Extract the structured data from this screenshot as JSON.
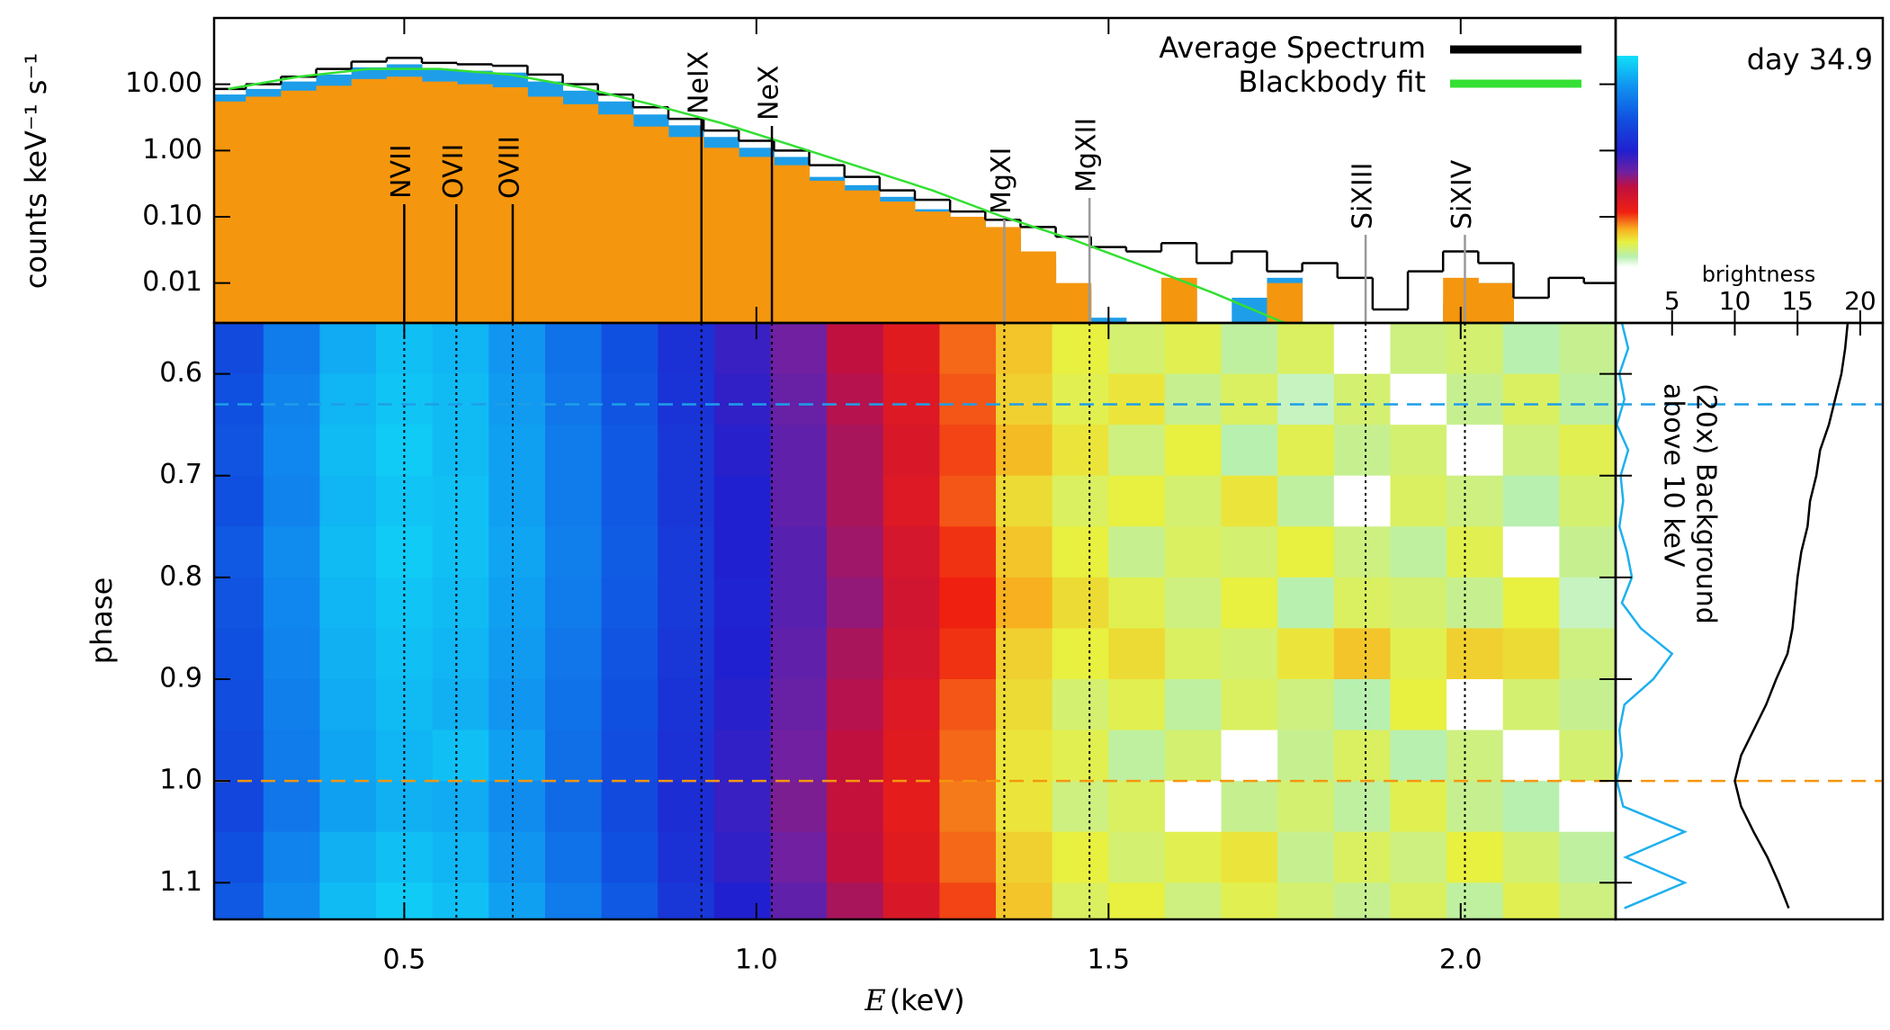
{
  "chart_data": [
    {
      "type": "histogram",
      "ylabel": "counts keV⁻¹ s⁻¹",
      "xlim": [
        0.23,
        2.22
      ],
      "ylim": [
        0.0025,
        100
      ],
      "log_y": true,
      "yticks": [
        {
          "value": 10,
          "label": "10.00"
        },
        {
          "value": 1,
          "label": "1.00"
        },
        {
          "value": 0.1,
          "label": "0.10"
        },
        {
          "value": 0.01,
          "label": "0.01"
        }
      ],
      "bins": [
        0.225,
        0.275,
        0.325,
        0.375,
        0.425,
        0.475,
        0.525,
        0.575,
        0.625,
        0.675,
        0.725,
        0.775,
        0.825,
        0.875,
        0.925,
        0.975,
        1.025,
        1.075,
        1.125,
        1.175,
        1.225,
        1.275,
        1.325,
        1.375,
        1.425,
        1.475,
        1.525,
        1.575,
        1.625,
        1.675,
        1.725,
        1.775,
        1.825,
        1.875,
        1.925,
        1.975,
        2.025,
        2.075,
        2.125,
        2.175,
        2.225
      ],
      "series": [
        {
          "color": "#1e9ee8",
          "style": "fill",
          "values": [
            7,
            8.5,
            11,
            14,
            18,
            20,
            17,
            16,
            15,
            11,
            8,
            5.5,
            3.5,
            2.4,
            1.6,
            1.1,
            0.8,
            0.4,
            0.3,
            0.2,
            0.13,
            0.09,
            0.05,
            0.02,
            0.008,
            0.003,
            null,
            0.008,
            null,
            0.006,
            0.012,
            null,
            null,
            null,
            null,
            0.005,
            0.01,
            null,
            null,
            null
          ]
        },
        {
          "color": "#f5960f",
          "style": "fill",
          "values": [
            5.5,
            6.5,
            8,
            9.5,
            12,
            13,
            11,
            10,
            9,
            6.5,
            5,
            3.5,
            2.3,
            1.6,
            1.1,
            0.8,
            0.6,
            0.35,
            0.25,
            0.17,
            0.12,
            0.1,
            0.07,
            0.03,
            0.01,
            null,
            null,
            0.012,
            null,
            null,
            0.01,
            null,
            null,
            null,
            null,
            0.012,
            0.01,
            null,
            null,
            null
          ]
        },
        {
          "name": "Average Spectrum",
          "color": "#000000",
          "style": "step",
          "values": [
            8.5,
            10,
            13,
            17,
            22,
            25,
            21,
            20,
            19,
            14,
            10,
            7,
            4.5,
            3,
            2,
            1.4,
            1,
            0.6,
            0.4,
            0.25,
            0.18,
            0.12,
            0.09,
            0.07,
            0.05,
            0.035,
            0.03,
            0.04,
            0.02,
            0.03,
            0.015,
            0.02,
            0.012,
            0.004,
            0.015,
            0.03,
            0.02,
            0.006,
            0.012,
            0.01
          ]
        },
        {
          "name": "Blackbody fit",
          "color": "#33e033",
          "style": "line",
          "x": [
            0.25,
            0.35,
            0.45,
            0.55,
            0.65,
            0.75,
            0.85,
            0.95,
            1.05,
            1.15,
            1.25,
            1.35,
            1.45,
            1.55,
            1.65,
            1.75
          ],
          "values": [
            8.5,
            13,
            17,
            17,
            14,
            9,
            5,
            2.6,
            1.2,
            0.55,
            0.25,
            0.1,
            0.045,
            0.018,
            0.007,
            0.0025
          ]
        }
      ],
      "lines": [
        {
          "label": "NVII",
          "energy": 0.5,
          "color": "#000000"
        },
        {
          "label": "OVII",
          "energy": 0.574,
          "color": "#000000"
        },
        {
          "label": "OVIII",
          "energy": 0.654,
          "color": "#000000"
        },
        {
          "label": "NeIX",
          "energy": 0.922,
          "color": "#000000"
        },
        {
          "label": "NeX",
          "energy": 1.022,
          "color": "#000000"
        },
        {
          "label": "MgXI",
          "energy": 1.352,
          "color": "#999999"
        },
        {
          "label": "MgXII",
          "energy": 1.473,
          "color": "#999999"
        },
        {
          "label": "SiXIII",
          "energy": 1.865,
          "color": "#999999"
        },
        {
          "label": "SiXIV",
          "energy": 2.006,
          "color": "#999999"
        }
      ],
      "annotation": "day 34.9"
    },
    {
      "type": "heatmap",
      "xlabel": {
        "var": "E",
        "unit": "(keV)"
      },
      "ylabel": "phase",
      "xlim": [
        0.23,
        2.22
      ],
      "ylim": [
        0.55,
        1.136
      ],
      "xticks": [
        0.5,
        {
          "value": 1,
          "label": "1.0"
        },
        1.5,
        {
          "value": 2,
          "label": "2.0"
        }
      ],
      "yticks": [
        0.6,
        0.7,
        0.8,
        0.9,
        {
          "value": 1,
          "label": "1.0"
        },
        1.1
      ],
      "x_bins": [
        0.22,
        0.3,
        0.38,
        0.46,
        0.54,
        0.62,
        0.7,
        0.78,
        0.86,
        0.94,
        1.02,
        1.1,
        1.18,
        1.26,
        1.34,
        1.42,
        1.5,
        1.58,
        1.66,
        1.74,
        1.82,
        1.9,
        1.98,
        2.06,
        2.14,
        2.22
      ],
      "y_bins": [
        0.55,
        0.6,
        0.65,
        0.7,
        0.75,
        0.8,
        0.85,
        0.9,
        0.95,
        1.0,
        1.05,
        1.1,
        1.15
      ],
      "colormap": [
        [
          0,
          "#ffffff"
        ],
        [
          5,
          "#b8f0b0"
        ],
        [
          12,
          "#e8f040"
        ],
        [
          18,
          "#f8b020"
        ],
        [
          26,
          "#f02010"
        ],
        [
          38,
          "#c01040"
        ],
        [
          45,
          "#7020a0"
        ],
        [
          55,
          "#2020d0"
        ],
        [
          70,
          "#1050e0"
        ],
        [
          85,
          "#1090f0"
        ],
        [
          100,
          "#10e0f8"
        ]
      ],
      "matrix": [
        [
          68,
          80,
          90,
          94,
          92,
          86,
          78,
          70,
          60,
          52,
          45,
          38,
          30,
          22,
          16,
          12,
          9,
          11,
          6,
          10,
          0,
          8,
          9,
          5,
          7
        ],
        [
          70,
          82,
          92,
          95,
          93,
          87,
          79,
          71,
          61,
          53,
          46,
          39,
          31,
          23,
          15,
          11,
          13,
          7,
          10,
          4,
          9,
          0,
          7,
          10,
          6
        ],
        [
          71,
          83,
          93,
          96,
          93,
          88,
          80,
          72,
          62,
          54,
          47,
          40,
          32,
          24,
          17,
          13,
          8,
          12,
          5,
          11,
          7,
          9,
          0,
          8,
          11
        ],
        [
          70,
          82,
          92,
          95,
          94,
          88,
          80,
          72,
          62,
          55,
          47,
          40,
          31,
          23,
          14,
          10,
          12,
          9,
          13,
          6,
          0,
          10,
          8,
          5,
          9
        ],
        [
          72,
          84,
          93,
          96,
          94,
          89,
          81,
          73,
          63,
          55,
          48,
          41,
          33,
          25,
          16,
          12,
          7,
          10,
          9,
          12,
          8,
          6,
          11,
          0,
          7
        ],
        [
          71,
          83,
          92,
          95,
          93,
          88,
          80,
          72,
          63,
          56,
          48,
          42,
          34,
          26,
          18,
          14,
          11,
          8,
          12,
          5,
          10,
          9,
          7,
          12,
          4
        ],
        [
          70,
          82,
          91,
          94,
          92,
          87,
          79,
          71,
          62,
          55,
          47,
          40,
          33,
          25,
          15,
          12,
          14,
          10,
          9,
          13,
          16,
          11,
          15,
          14,
          8
        ],
        [
          69,
          81,
          90,
          93,
          91,
          86,
          78,
          70,
          61,
          54,
          46,
          39,
          31,
          23,
          14,
          9,
          11,
          6,
          10,
          8,
          5,
          12,
          0,
          9,
          7
        ],
        [
          68,
          80,
          89,
          92,
          94,
          88,
          77,
          69,
          60,
          53,
          45,
          38,
          30,
          22,
          13,
          11,
          6,
          9,
          0,
          7,
          10,
          5,
          8,
          0,
          9
        ],
        [
          67,
          79,
          88,
          91,
          90,
          84,
          76,
          68,
          59,
          52,
          44,
          37,
          29,
          21,
          13,
          8,
          10,
          0,
          7,
          9,
          6,
          11,
          7,
          5,
          0
        ],
        [
          70,
          82,
          91,
          94,
          92,
          86,
          78,
          70,
          60,
          53,
          45,
          38,
          30,
          22,
          15,
          12,
          9,
          11,
          13,
          7,
          10,
          8,
          12,
          9,
          6
        ],
        [
          72,
          84,
          93,
          96,
          94,
          88,
          80,
          72,
          62,
          55,
          47,
          40,
          32,
          24,
          16,
          10,
          12,
          8,
          11,
          9,
          7,
          10,
          6,
          11,
          8
        ]
      ],
      "markers": [
        {
          "value": 0.63,
          "color": "#1e9ee8"
        },
        {
          "value": 1.0,
          "color": "#f5960f"
        }
      ]
    },
    {
      "type": "line",
      "xlabel": "brightness",
      "xlim": [
        0.5,
        21.8
      ],
      "xticks": [
        5,
        10,
        15,
        20
      ],
      "phase": [
        0.55,
        0.575,
        0.6,
        0.625,
        0.65,
        0.675,
        0.7,
        0.725,
        0.75,
        0.775,
        0.8,
        0.825,
        0.85,
        0.875,
        0.9,
        0.925,
        0.95,
        0.975,
        1.0,
        1.025,
        1.05,
        1.075,
        1.1,
        1.125
      ],
      "series": [
        {
          "color": "#000000",
          "values": [
            19,
            18.8,
            18.5,
            18,
            17.5,
            16.8,
            16.5,
            16,
            15.8,
            15.3,
            15,
            14.8,
            14.6,
            14.2,
            13.3,
            12.5,
            11.5,
            10.5,
            10,
            10.5,
            11.5,
            12.6,
            13.5,
            14.3
          ]
        },
        {
          "color": "#1eb0ee",
          "values": [
            1,
            1.5,
            0.8,
            1.2,
            0.6,
            1.5,
            0.9,
            1.1,
            0.8,
            1.4,
            1.8,
            1,
            2.5,
            5,
            3.5,
            1.2,
            0.8,
            1,
            0.6,
            1.1,
            6,
            1.3,
            6,
            1.2
          ]
        }
      ],
      "annotation": [
        "(20x) Background",
        "above 10 keV"
      ]
    }
  ]
}
